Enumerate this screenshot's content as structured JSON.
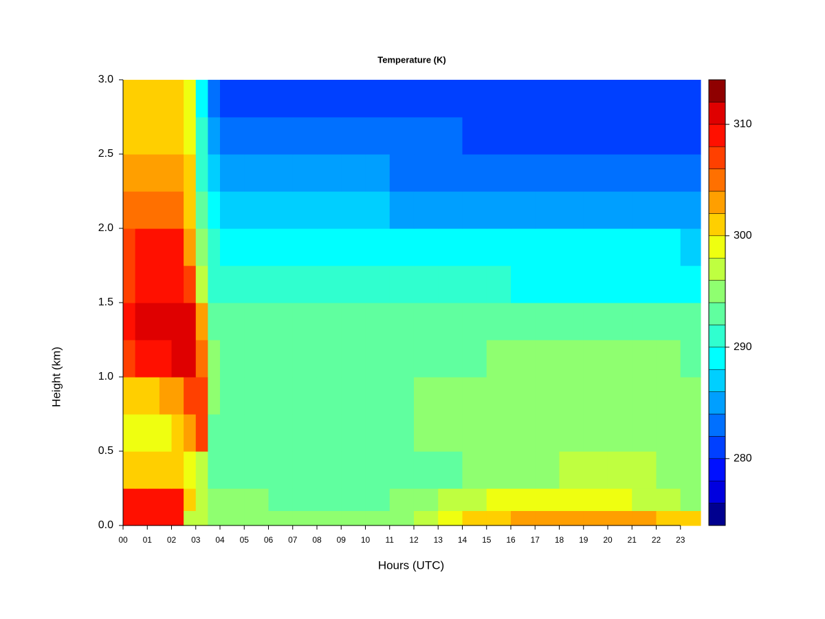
{
  "chart_data": {
    "type": "heatmap",
    "title": "Temperature (K)",
    "xlabel": "Hours (UTC)",
    "ylabel": "Height (km)",
    "xlim": [
      0,
      23.83
    ],
    "ylim": [
      0,
      3
    ],
    "xticks": [
      {
        "value": 0,
        "label": "00"
      },
      {
        "value": 1,
        "label": "01"
      },
      {
        "value": 2,
        "label": "02"
      },
      {
        "value": 3,
        "label": "03"
      },
      {
        "value": 4,
        "label": "04"
      },
      {
        "value": 5,
        "label": "05"
      },
      {
        "value": 6,
        "label": "06"
      },
      {
        "value": 7,
        "label": "07"
      },
      {
        "value": 8,
        "label": "08"
      },
      {
        "value": 9,
        "label": "09"
      },
      {
        "value": 10,
        "label": "10"
      },
      {
        "value": 11,
        "label": "11"
      },
      {
        "value": 12,
        "label": "12"
      },
      {
        "value": 13,
        "label": "13"
      },
      {
        "value": 14,
        "label": "14"
      },
      {
        "value": 15,
        "label": "15"
      },
      {
        "value": 16,
        "label": "16"
      },
      {
        "value": 17,
        "label": "17"
      },
      {
        "value": 18,
        "label": "18"
      },
      {
        "value": 19,
        "label": "19"
      },
      {
        "value": 20,
        "label": "20"
      },
      {
        "value": 21,
        "label": "21"
      },
      {
        "value": 22,
        "label": "22"
      },
      {
        "value": 23,
        "label": "23"
      }
    ],
    "yticks": [
      {
        "value": 0,
        "label": "0.0"
      },
      {
        "value": 0.5,
        "label": "0.5"
      },
      {
        "value": 1,
        "label": "1.0"
      },
      {
        "value": 1.5,
        "label": "1.5"
      },
      {
        "value": 2,
        "label": "2.0"
      },
      {
        "value": 2.5,
        "label": "2.5"
      },
      {
        "value": 3,
        "label": "3.0"
      }
    ],
    "x": [
      0,
      0.5,
      1,
      1.5,
      2,
      2.5,
      3,
      3.5,
      4,
      5,
      6,
      7,
      8,
      9,
      10,
      11,
      12,
      13,
      14,
      15,
      16,
      17,
      18,
      19,
      20,
      21,
      22,
      23
    ],
    "y": [
      0,
      0.1,
      0.25,
      0.5,
      0.75,
      1,
      1.25,
      1.5,
      1.75,
      2,
      2.25,
      2.5,
      2.75
    ],
    "z": [
      [
        309,
        309,
        309,
        309,
        309,
        297,
        296,
        295,
        295,
        295,
        295,
        295,
        295,
        295,
        295,
        295,
        296,
        298,
        300,
        300,
        302,
        303,
        303,
        303,
        302,
        302,
        301,
        300
      ],
      [
        308,
        308,
        308,
        308,
        308,
        300,
        296,
        294,
        294,
        294,
        293,
        293,
        293,
        293,
        293,
        294,
        295,
        296,
        297,
        298,
        298,
        299,
        299,
        299,
        298,
        297,
        296,
        295
      ],
      [
        300,
        300,
        300,
        300,
        300,
        299,
        297,
        293,
        292,
        292,
        292,
        292,
        292,
        292,
        292,
        293,
        293,
        293,
        294,
        294,
        295,
        295,
        296,
        296,
        296,
        296,
        295,
        295
      ],
      [
        298,
        298,
        299,
        299,
        300,
        303,
        306,
        293,
        293,
        293,
        293,
        293,
        293,
        293,
        293,
        293,
        294,
        294,
        294,
        294,
        295,
        295,
        295,
        295,
        295,
        295,
        295,
        295
      ],
      [
        301,
        301,
        301,
        302,
        303,
        306,
        307,
        295,
        293,
        293,
        293,
        293,
        293,
        293,
        293,
        293,
        294,
        294,
        294,
        294,
        295,
        295,
        295,
        295,
        295,
        295,
        295,
        294
      ],
      [
        307,
        309,
        309,
        309,
        310,
        310,
        305,
        294,
        293,
        293,
        293,
        293,
        293,
        293,
        293,
        293,
        293,
        293,
        293,
        294,
        294,
        294,
        294,
        294,
        294,
        294,
        294,
        293
      ],
      [
        309,
        310,
        310,
        310,
        310,
        310,
        302,
        292,
        292,
        292,
        292,
        292,
        292,
        292,
        292,
        292,
        292,
        292,
        292,
        292,
        292,
        292,
        292,
        292,
        292,
        292,
        292,
        292
      ],
      [
        307,
        308,
        308,
        308,
        308,
        306,
        297,
        291,
        290,
        290,
        290,
        290,
        290,
        290,
        290,
        290,
        290,
        290,
        290,
        290,
        289,
        289,
        289,
        289,
        289,
        289,
        289,
        289
      ],
      [
        307,
        308,
        308,
        308,
        308,
        303,
        295,
        290,
        289,
        289,
        289,
        289,
        289,
        288,
        288,
        288,
        288,
        288,
        288,
        288,
        288,
        288,
        288,
        288,
        288,
        288,
        288,
        287
      ],
      [
        304,
        304,
        304,
        304,
        304,
        301,
        293,
        288,
        286,
        286,
        286,
        286,
        286,
        286,
        286,
        285,
        285,
        285,
        285,
        285,
        285,
        285,
        285,
        285,
        285,
        285,
        285,
        285
      ],
      [
        303,
        303,
        303,
        303,
        302,
        300,
        291,
        286,
        284,
        284,
        284,
        284,
        284,
        284,
        284,
        283,
        283,
        283,
        283,
        283,
        283,
        283,
        283,
        283,
        283,
        283,
        283,
        283
      ],
      [
        301,
        301,
        301,
        301,
        301,
        299,
        290,
        284,
        282,
        282,
        282,
        282,
        282,
        282,
        282,
        282,
        282,
        282,
        281,
        281,
        281,
        281,
        281,
        281,
        281,
        281,
        281,
        281
      ],
      [
        300,
        300,
        300,
        300,
        300,
        298,
        289,
        282,
        281,
        281,
        280,
        280,
        280,
        280,
        280,
        280,
        280,
        280,
        280,
        280,
        280,
        280,
        280,
        280,
        280,
        280,
        280,
        280
      ]
    ],
    "levels": [
      274,
      276,
      278,
      280,
      282,
      284,
      286,
      288,
      290,
      292,
      294,
      296,
      298,
      300,
      302,
      304,
      306,
      308,
      310,
      312,
      314
    ],
    "colors": [
      "#00008F",
      "#0000DF",
      "#0010FF",
      "#0040FF",
      "#0070FF",
      "#009FFF",
      "#00CFFF",
      "#00FFFF",
      "#30FFCF",
      "#60FF9F",
      "#8FFF70",
      "#BFFF40",
      "#EFFF10",
      "#FFCF00",
      "#FF9F00",
      "#FF7000",
      "#FF4000",
      "#FF1000",
      "#DF0000",
      "#8F0000"
    ],
    "zticks": [
      280,
      290,
      300,
      310
    ]
  }
}
